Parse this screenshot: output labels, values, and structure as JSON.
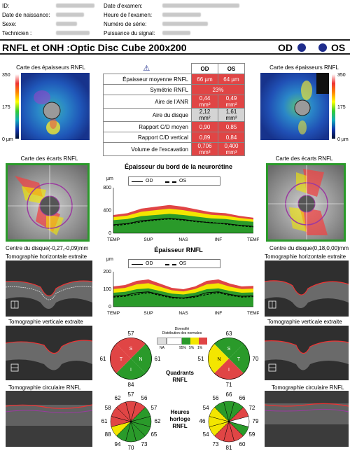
{
  "header": {
    "id_label": "ID:",
    "dob_label": "Date de naissance:",
    "sex_label": "Sexe:",
    "tech_label": "Technicien :",
    "exam_date_label": "Date d'examen:",
    "exam_time_label": "Heure de l'examen:",
    "serial_label": "Numéro de série:",
    "signal_label": "Puissance du signal:"
  },
  "title": "RNFL et ONH :Optic Disc Cube 200x200",
  "eyes": {
    "od": "OD",
    "os": "OS"
  },
  "maps": {
    "thickness_title": "Carte des épaisseurs RNFL",
    "deviation_title": "Carte des écarts RNFL",
    "scale_max": "350",
    "scale_mid": "175",
    "scale_min": "0 µm"
  },
  "metrics": {
    "head_od": "OD",
    "head_os": "OS",
    "warning_symbol": "⚠",
    "rows": [
      {
        "label": "Épaisseur moyenne RNFL",
        "od": "66 µm",
        "os": "64 µm"
      },
      {
        "label": "Symétrie RNFL",
        "merged": "23%"
      },
      {
        "label": "Aire de l'ANR",
        "od": "0,44 mm²",
        "os": "0,49 mm²"
      },
      {
        "label": "Aire du disque",
        "od": "2,12 mm²",
        "os": "1,61 mm²"
      },
      {
        "label": "Rapport C/D moyen",
        "od": "0,90",
        "os": "0,85"
      },
      {
        "label": "Rapport C/D vertical",
        "od": "0,89",
        "os": "0,84"
      },
      {
        "label": "Volume de l'excavation",
        "od": "0,706 mm³",
        "os": "0,400 mm³"
      }
    ]
  },
  "disc_center": {
    "od": "Centre du disque(-0,27,-0,09)mm",
    "os": "Centre du disque(0,18,0,00)mm"
  },
  "scans": {
    "horizontal": "Tomographie horizontale extraite",
    "vertical": "Tomographie verticale extraite",
    "circular": "Tomographie circulaire RNFL"
  },
  "chart_rim": {
    "title": "Épaisseur du bord de la neurorétine",
    "unit": "µm",
    "legend_od": "OD",
    "legend_os": "OS"
  },
  "chart_rnfl": {
    "title": "Épaisseur RNFL",
    "unit": "µm",
    "legend_od": "OD",
    "legend_os": "OS"
  },
  "chart_data": [
    {
      "type": "area",
      "title": "Épaisseur du bord de la neurorétine",
      "ylabel": "µm",
      "ylim": [
        0,
        800
      ],
      "yticks": [
        0,
        400,
        800
      ],
      "xticks": [
        "TEMP",
        "SUP",
        "NAS",
        "INF",
        "TEMP"
      ],
      "series": [
        {
          "name": "OD",
          "values": [
            150,
            170,
            220,
            240,
            260,
            240,
            210,
            180,
            170,
            140,
            120
          ]
        },
        {
          "name": "OS",
          "values": [
            130,
            160,
            200,
            230,
            250,
            230,
            200,
            190,
            160,
            130,
            110
          ]
        }
      ]
    },
    {
      "type": "area",
      "title": "Épaisseur RNFL",
      "ylabel": "µm",
      "ylim": [
        0,
        200
      ],
      "yticks": [
        0,
        100,
        200
      ],
      "xticks": [
        "TEMP",
        "SUP",
        "NAS",
        "INF",
        "TEMP"
      ],
      "series": [
        {
          "name": "OD",
          "values": [
            60,
            65,
            80,
            85,
            70,
            55,
            50,
            60,
            80,
            85,
            70,
            60,
            62
          ]
        },
        {
          "name": "OS",
          "values": [
            55,
            60,
            70,
            80,
            65,
            50,
            48,
            55,
            70,
            80,
            65,
            55,
            58
          ]
        }
      ]
    }
  ],
  "legend_dist": {
    "title": "Diversifié",
    "subtitle": "Distribution des normales",
    "na": "NA",
    "p95": "95%",
    "p5": "5%",
    "p1": "1%"
  },
  "quadrants": {
    "label_1": "Quadrants",
    "label_2": "RNFL",
    "od": {
      "S": "57",
      "N": "61",
      "I": "84",
      "T": "61"
    },
    "os": {
      "S": "63",
      "N": "70",
      "I": "71",
      "T": "51"
    }
  },
  "clock": {
    "label_1": "Heures",
    "label_2": "horloge",
    "label_3": "RNFL",
    "od": [
      "57",
      "56",
      "57",
      "62",
      "65",
      "73",
      "70",
      "94",
      "88",
      "61",
      "58",
      "62"
    ],
    "os": [
      "66",
      "66",
      "72",
      "79",
      "59",
      "60",
      "81",
      "73",
      "54",
      "46",
      "54",
      "56"
    ]
  },
  "colors": {
    "red": "#e04545",
    "yellow": "#f3e600",
    "green": "#2a9a2a",
    "navy": "#1e2c8c",
    "purple": "#9b3aa0"
  }
}
